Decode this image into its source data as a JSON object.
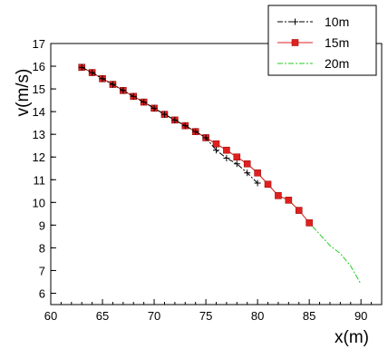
{
  "chart_data": {
    "type": "line",
    "xlabel": "x(m)",
    "ylabel": "v(m/s)",
    "xlim": [
      60,
      92
    ],
    "ylim": [
      5.5,
      17
    ],
    "xticks": [
      60,
      65,
      70,
      75,
      80,
      85,
      90
    ],
    "yticks": [
      6,
      7,
      8,
      9,
      10,
      11,
      12,
      13,
      14,
      15,
      16,
      17
    ],
    "grid": false,
    "legend_position": "top-right",
    "series": [
      {
        "name": "10m",
        "color": "#000000",
        "marker": "plus",
        "dash": "dashdot",
        "x": [
          63,
          64,
          65,
          66,
          67,
          68,
          69,
          70,
          71,
          72,
          73,
          74,
          75,
          76,
          77,
          78,
          79,
          80
        ],
        "y": [
          15.95,
          15.72,
          15.45,
          15.2,
          14.93,
          14.67,
          14.42,
          14.15,
          13.88,
          13.63,
          13.38,
          13.12,
          12.85,
          12.3,
          11.95,
          11.7,
          11.3,
          10.85
        ]
      },
      {
        "name": "15m",
        "color": "#e02020",
        "marker": "square",
        "dash": "solid",
        "x": [
          63,
          64,
          65,
          66,
          67,
          68,
          69,
          70,
          71,
          72,
          73,
          74,
          75,
          76,
          77,
          78,
          79,
          80,
          81,
          82,
          83,
          84,
          85
        ],
        "y": [
          15.95,
          15.72,
          15.45,
          15.2,
          14.93,
          14.67,
          14.42,
          14.15,
          13.88,
          13.63,
          13.38,
          13.12,
          12.85,
          12.58,
          12.3,
          12.0,
          11.7,
          11.3,
          10.8,
          10.3,
          10.1,
          9.65,
          9.1
        ]
      },
      {
        "name": "20m",
        "color": "#22cc22",
        "marker": "none",
        "dash": "dashdot",
        "x": [
          63,
          64,
          65,
          66,
          67,
          68,
          69,
          70,
          71,
          72,
          73,
          74,
          75,
          76,
          77,
          78,
          79,
          80,
          81,
          82,
          83,
          84,
          85,
          86,
          87,
          88,
          89,
          90
        ],
        "y": [
          15.95,
          15.72,
          15.45,
          15.2,
          14.93,
          14.67,
          14.42,
          14.15,
          13.88,
          13.63,
          13.38,
          13.12,
          12.85,
          12.58,
          12.3,
          12.0,
          11.7,
          11.3,
          10.8,
          10.3,
          10.1,
          9.65,
          9.1,
          8.6,
          8.1,
          7.75,
          7.2,
          6.4
        ]
      }
    ]
  }
}
